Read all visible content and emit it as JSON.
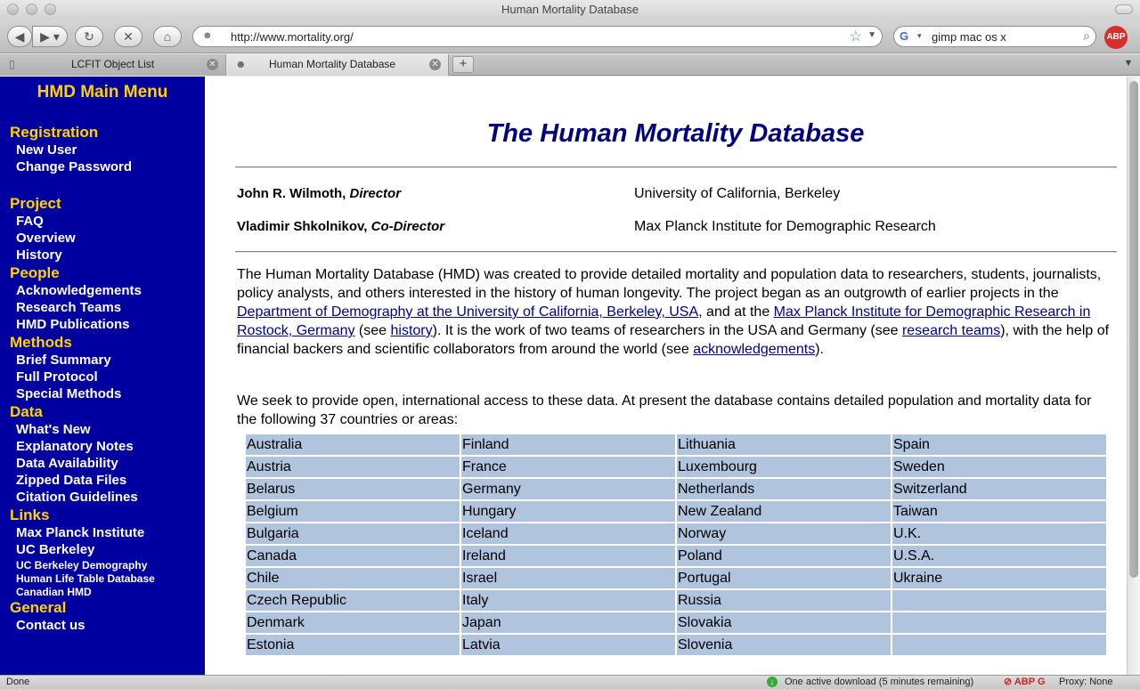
{
  "window": {
    "title": "Human Mortality Database"
  },
  "toolbar": {
    "url": "http://www.mortality.org/",
    "search_value": "gimp mac os x",
    "abp_label": "ABP"
  },
  "tabs": [
    {
      "label": "LCFIT Object List",
      "active": false
    },
    {
      "label": "Human Mortality Database",
      "active": true
    }
  ],
  "sidebar": {
    "title": "HMD Main Menu",
    "sections": {
      "registration": {
        "label": "Registration",
        "items": [
          "New User",
          "Change Password"
        ]
      },
      "project": {
        "label": "Project",
        "items": [
          "FAQ",
          "Overview",
          "History"
        ]
      },
      "people": {
        "label": "People",
        "items": [
          "Acknowledgements",
          "Research Teams",
          "HMD Publications"
        ]
      },
      "methods": {
        "label": "Methods",
        "items": [
          "Brief Summary",
          "Full Protocol",
          "Special Methods"
        ]
      },
      "data": {
        "label": "Data",
        "items": [
          "What's New",
          "Explanatory Notes",
          "Data Availability",
          "Zipped Data Files",
          "Citation Guidelines"
        ]
      },
      "links": {
        "label": "Links",
        "items": [
          "Max Planck Institute",
          "UC Berkeley",
          "UC Berkeley Demography",
          "Human Life Table Database",
          "Canadian HMD"
        ]
      },
      "general": {
        "label": "General",
        "items": [
          "Contact us"
        ]
      }
    }
  },
  "main": {
    "title": "The Human Mortality Database",
    "people": [
      {
        "name": "John R. Wilmoth,",
        "role": "Director",
        "affiliation": "University of California, Berkeley"
      },
      {
        "name": "Vladimir Shkolnikov,",
        "role": "Co-Director",
        "affiliation": "Max Planck Institute for Demographic Research"
      }
    ],
    "intro": {
      "t1": "The Human Mortality Database (HMD) was created to provide detailed mortality and population data to researchers, students, journalists, policy analysts, and others interested in the history of human longevity. The project began as an outgrowth of earlier projects in the ",
      "link_berkeley": "Department of Demography at the University of California, Berkeley, USA",
      "t2": ", and at the ",
      "link_mpi": "Max Planck Institute for Demographic Research in Rostock, Germany",
      "t3": " (see ",
      "link_history": "history",
      "t4": "). It is the work of two teams of researchers in the USA and Germany (see ",
      "link_teams": "research teams",
      "t5": "), with the help of financial backers and scientific collaborators from around the world (see ",
      "link_ack": "acknowledgements",
      "t6": ")."
    },
    "access_text": "We seek to provide open, international access to these data. At present the database contains detailed population and mortality data for the following 37 countries or areas:",
    "countries": [
      [
        "Australia",
        "Finland",
        "Lithuania",
        "Spain"
      ],
      [
        "Austria",
        "France",
        "Luxembourg",
        "Sweden"
      ],
      [
        "Belarus",
        "Germany",
        "Netherlands",
        "Switzerland"
      ],
      [
        "Belgium",
        "Hungary",
        "New Zealand",
        "Taiwan"
      ],
      [
        "Bulgaria",
        "Iceland",
        "Norway",
        "U.K."
      ],
      [
        "Canada",
        "Ireland",
        "Poland",
        "U.S.A."
      ],
      [
        "Chile",
        "Israel",
        "Portugal",
        "Ukraine"
      ],
      [
        "Czech Republic",
        "Italy",
        "Russia",
        ""
      ],
      [
        "Denmark",
        "Japan",
        "Slovakia",
        ""
      ],
      [
        "Estonia",
        "Latvia",
        "Slovenia",
        ""
      ]
    ]
  },
  "status": {
    "left": "Done",
    "download": "One active download (5 minutes remaining)",
    "proxy": "Proxy: None"
  }
}
